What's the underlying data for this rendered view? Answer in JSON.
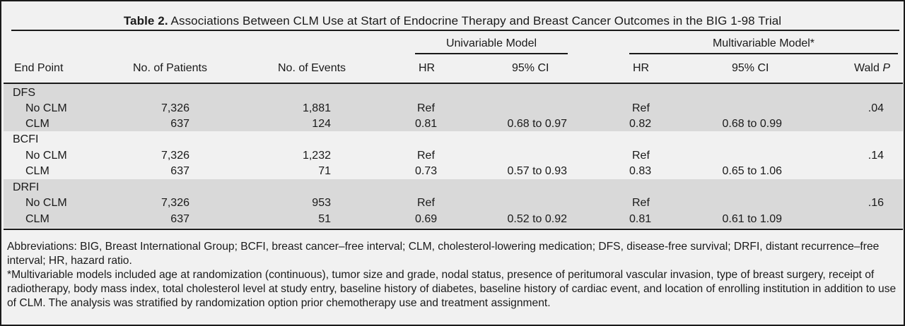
{
  "title": {
    "label": "Table 2.",
    "text": "Associations Between CLM Use at Start of Endocrine Therapy and Breast Cancer Outcomes in the BIG 1-98 Trial"
  },
  "header": {
    "univariable_group": "Univariable Model",
    "multivariable_group": "Multivariable Model*",
    "end_point": "End Point",
    "patients": "No. of Patients",
    "events": "No. of Events",
    "hr": "HR",
    "ci": "95% CI",
    "wald": "Wald",
    "p": "P"
  },
  "groups": [
    {
      "name": "DFS",
      "rows": [
        {
          "label": "No CLM",
          "patients": "7,326",
          "events": "1,881",
          "uni_hr": "Ref",
          "uni_ci": "",
          "multi_hr": "Ref",
          "multi_ci": "",
          "p": ".04"
        },
        {
          "label": "CLM",
          "patients": "637",
          "events": "124",
          "uni_hr": "0.81",
          "uni_ci": "0.68 to 0.97",
          "multi_hr": "0.82",
          "multi_ci": "0.68 to 0.99",
          "p": ""
        }
      ]
    },
    {
      "name": "BCFI",
      "rows": [
        {
          "label": "No CLM",
          "patients": "7,326",
          "events": "1,232",
          "uni_hr": "Ref",
          "uni_ci": "",
          "multi_hr": "Ref",
          "multi_ci": "",
          "p": ".14"
        },
        {
          "label": "CLM",
          "patients": "637",
          "events": "71",
          "uni_hr": "0.73",
          "uni_ci": "0.57 to 0.93",
          "multi_hr": "0.83",
          "multi_ci": "0.65 to 1.06",
          "p": ""
        }
      ]
    },
    {
      "name": "DRFI",
      "rows": [
        {
          "label": "No CLM",
          "patients": "7,326",
          "events": "953",
          "uni_hr": "Ref",
          "uni_ci": "",
          "multi_hr": "Ref",
          "multi_ci": "",
          "p": ".16"
        },
        {
          "label": "CLM",
          "patients": "637",
          "events": "51",
          "uni_hr": "0.69",
          "uni_ci": "0.52 to 0.92",
          "multi_hr": "0.81",
          "multi_ci": "0.61 to 1.09",
          "p": ""
        }
      ]
    }
  ],
  "footnotes": {
    "abbreviations": "Abbreviations: BIG, Breast International Group; BCFI, breast cancer–free interval; CLM, cholesterol-lowering medication; DFS, disease-free survival; DRFI, distant recurrence–free interval; HR, hazard ratio.",
    "multivariable": "*Multivariable models included age at randomization (continuous), tumor size and grade, nodal status, presence of peritumoral vascular invasion, type of breast surgery, receipt of radiotherapy, body mass index, total cholesterol level at study entry, baseline history of diabetes, baseline history of cardiac event, and location of enrolling institution in addition to use of CLM. The analysis was stratified by randomization option prior chemotherapy use and treatment assignment."
  }
}
